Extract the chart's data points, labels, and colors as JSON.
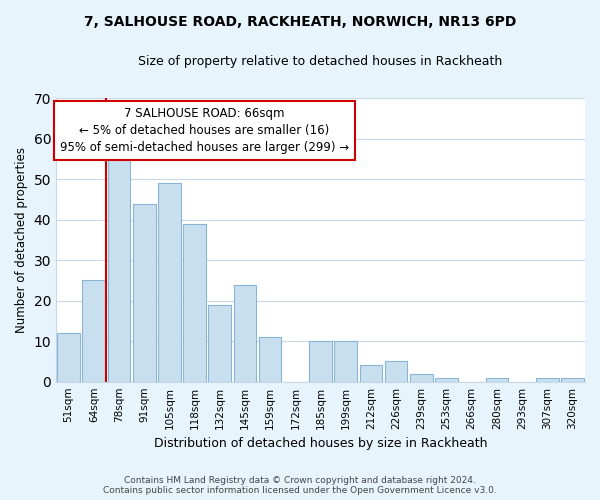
{
  "title1": "7, SALHOUSE ROAD, RACKHEATH, NORWICH, NR13 6PD",
  "title2": "Size of property relative to detached houses in Rackheath",
  "xlabel": "Distribution of detached houses by size in Rackheath",
  "ylabel": "Number of detached properties",
  "bar_labels": [
    "51sqm",
    "64sqm",
    "78sqm",
    "91sqm",
    "105sqm",
    "118sqm",
    "132sqm",
    "145sqm",
    "159sqm",
    "172sqm",
    "185sqm",
    "199sqm",
    "212sqm",
    "226sqm",
    "239sqm",
    "253sqm",
    "266sqm",
    "280sqm",
    "293sqm",
    "307sqm",
    "320sqm"
  ],
  "bar_values": [
    12,
    25,
    56,
    44,
    49,
    39,
    19,
    24,
    11,
    0,
    10,
    10,
    4,
    5,
    2,
    1,
    0,
    1,
    0,
    1,
    1
  ],
  "bar_color": "#c8dff0",
  "bar_edge_color": "#8ab4d4",
  "highlight_color": "#cc0000",
  "annotation_title": "7 SALHOUSE ROAD: 66sqm",
  "annotation_line1": "← 5% of detached houses are smaller (16)",
  "annotation_line2": "95% of semi-detached houses are larger (299) →",
  "annotation_box_color": "#ffffff",
  "annotation_box_edge": "#cc0000",
  "ylim": [
    0,
    70
  ],
  "yticks": [
    0,
    10,
    20,
    30,
    40,
    50,
    60,
    70
  ],
  "footnote1": "Contains HM Land Registry data © Crown copyright and database right 2024.",
  "footnote2": "Contains public sector information licensed under the Open Government Licence v3.0.",
  "bg_color": "#e8f4fc",
  "plot_bg_color": "#ffffff",
  "grid_color": "#c8d8e8"
}
